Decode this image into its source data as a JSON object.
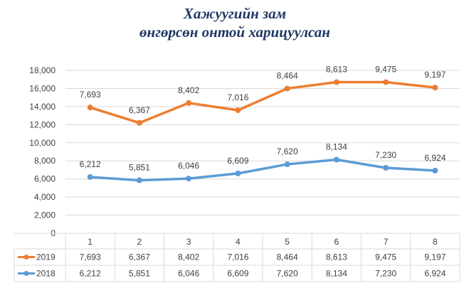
{
  "chart_data": {
    "type": "line",
    "title_lines": [
      "Хажуугийн зам",
      "өнгөрсөн онтой харицуулсан"
    ],
    "categories": [
      "1",
      "2",
      "3",
      "4",
      "5",
      "6",
      "7",
      "8"
    ],
    "y_ticks": [
      "0",
      "2,000",
      "4,000",
      "6,000",
      "8,000",
      "10,000",
      "12,000",
      "14,000",
      "16,000",
      "18,000"
    ],
    "ylim": [
      0,
      18000
    ],
    "grid": true,
    "legend": "data-table",
    "series": [
      {
        "name": "2019",
        "color": "#ed7d31",
        "plotted": [
          13900,
          12200,
          14400,
          13600,
          16000,
          16700,
          16700,
          16100
        ],
        "labels": [
          "7,693",
          "6,367",
          "8,402",
          "7,016",
          "8,464",
          "8,613",
          "9,475",
          "9,197"
        ]
      },
      {
        "name": "2018",
        "color": "#5b9bd5",
        "plotted": [
          6212,
          5851,
          6046,
          6609,
          7620,
          8134,
          7230,
          6924
        ],
        "labels": [
          "6,212",
          "5,851",
          "6,046",
          "6,609",
          "7,620",
          "8,134",
          "7,230",
          "6,924"
        ]
      }
    ]
  }
}
